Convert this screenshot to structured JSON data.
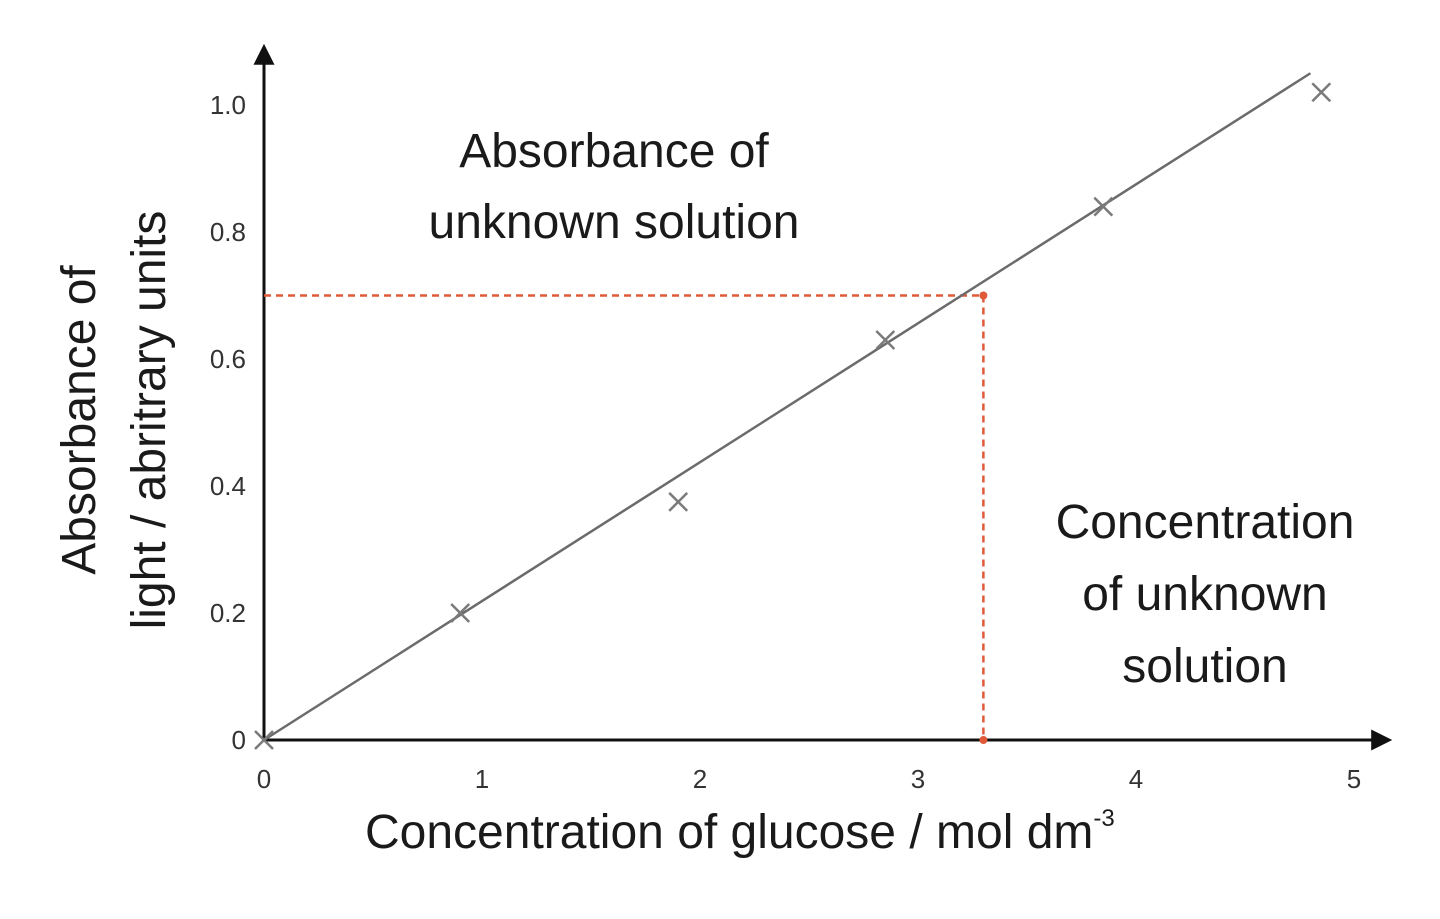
{
  "chart_data": {
    "type": "scatter",
    "xlabel": "Concentration of glucose / mol dm",
    "xlabel_superscript": "-3",
    "ylabel_lines": [
      "Absorbance of",
      "light / abritrary units"
    ],
    "xlim": [
      0,
      5
    ],
    "ylim": [
      0,
      1.0
    ],
    "x_ticks": [
      "0",
      "1",
      "2",
      "3",
      "4",
      "5"
    ],
    "y_ticks": [
      "0",
      "0.2",
      "0.4",
      "0.6",
      "0.8",
      "1.0"
    ],
    "grid": false,
    "legend": "none",
    "series": [
      {
        "marker": "x",
        "x": [
          0,
          0.9,
          1.9,
          2.85,
          3.85,
          4.85
        ],
        "y": [
          0,
          0.2,
          0.375,
          0.63,
          0.84,
          1.02
        ]
      }
    ],
    "fit_line": {
      "x": [
        0,
        4.8
      ],
      "y": [
        0,
        1.05
      ]
    },
    "reading": {
      "x": 3.3,
      "y": 0.7
    },
    "annotations": {
      "absorbance": [
        "Absorbance of",
        "unknown solution"
      ],
      "concentration": [
        "Concentration",
        "of unknown",
        "solution"
      ]
    },
    "colors": {
      "axis": "#111111",
      "fit": "#6b6b6b",
      "marker": "#7a7a7a",
      "reading": "#e05a3a"
    }
  }
}
